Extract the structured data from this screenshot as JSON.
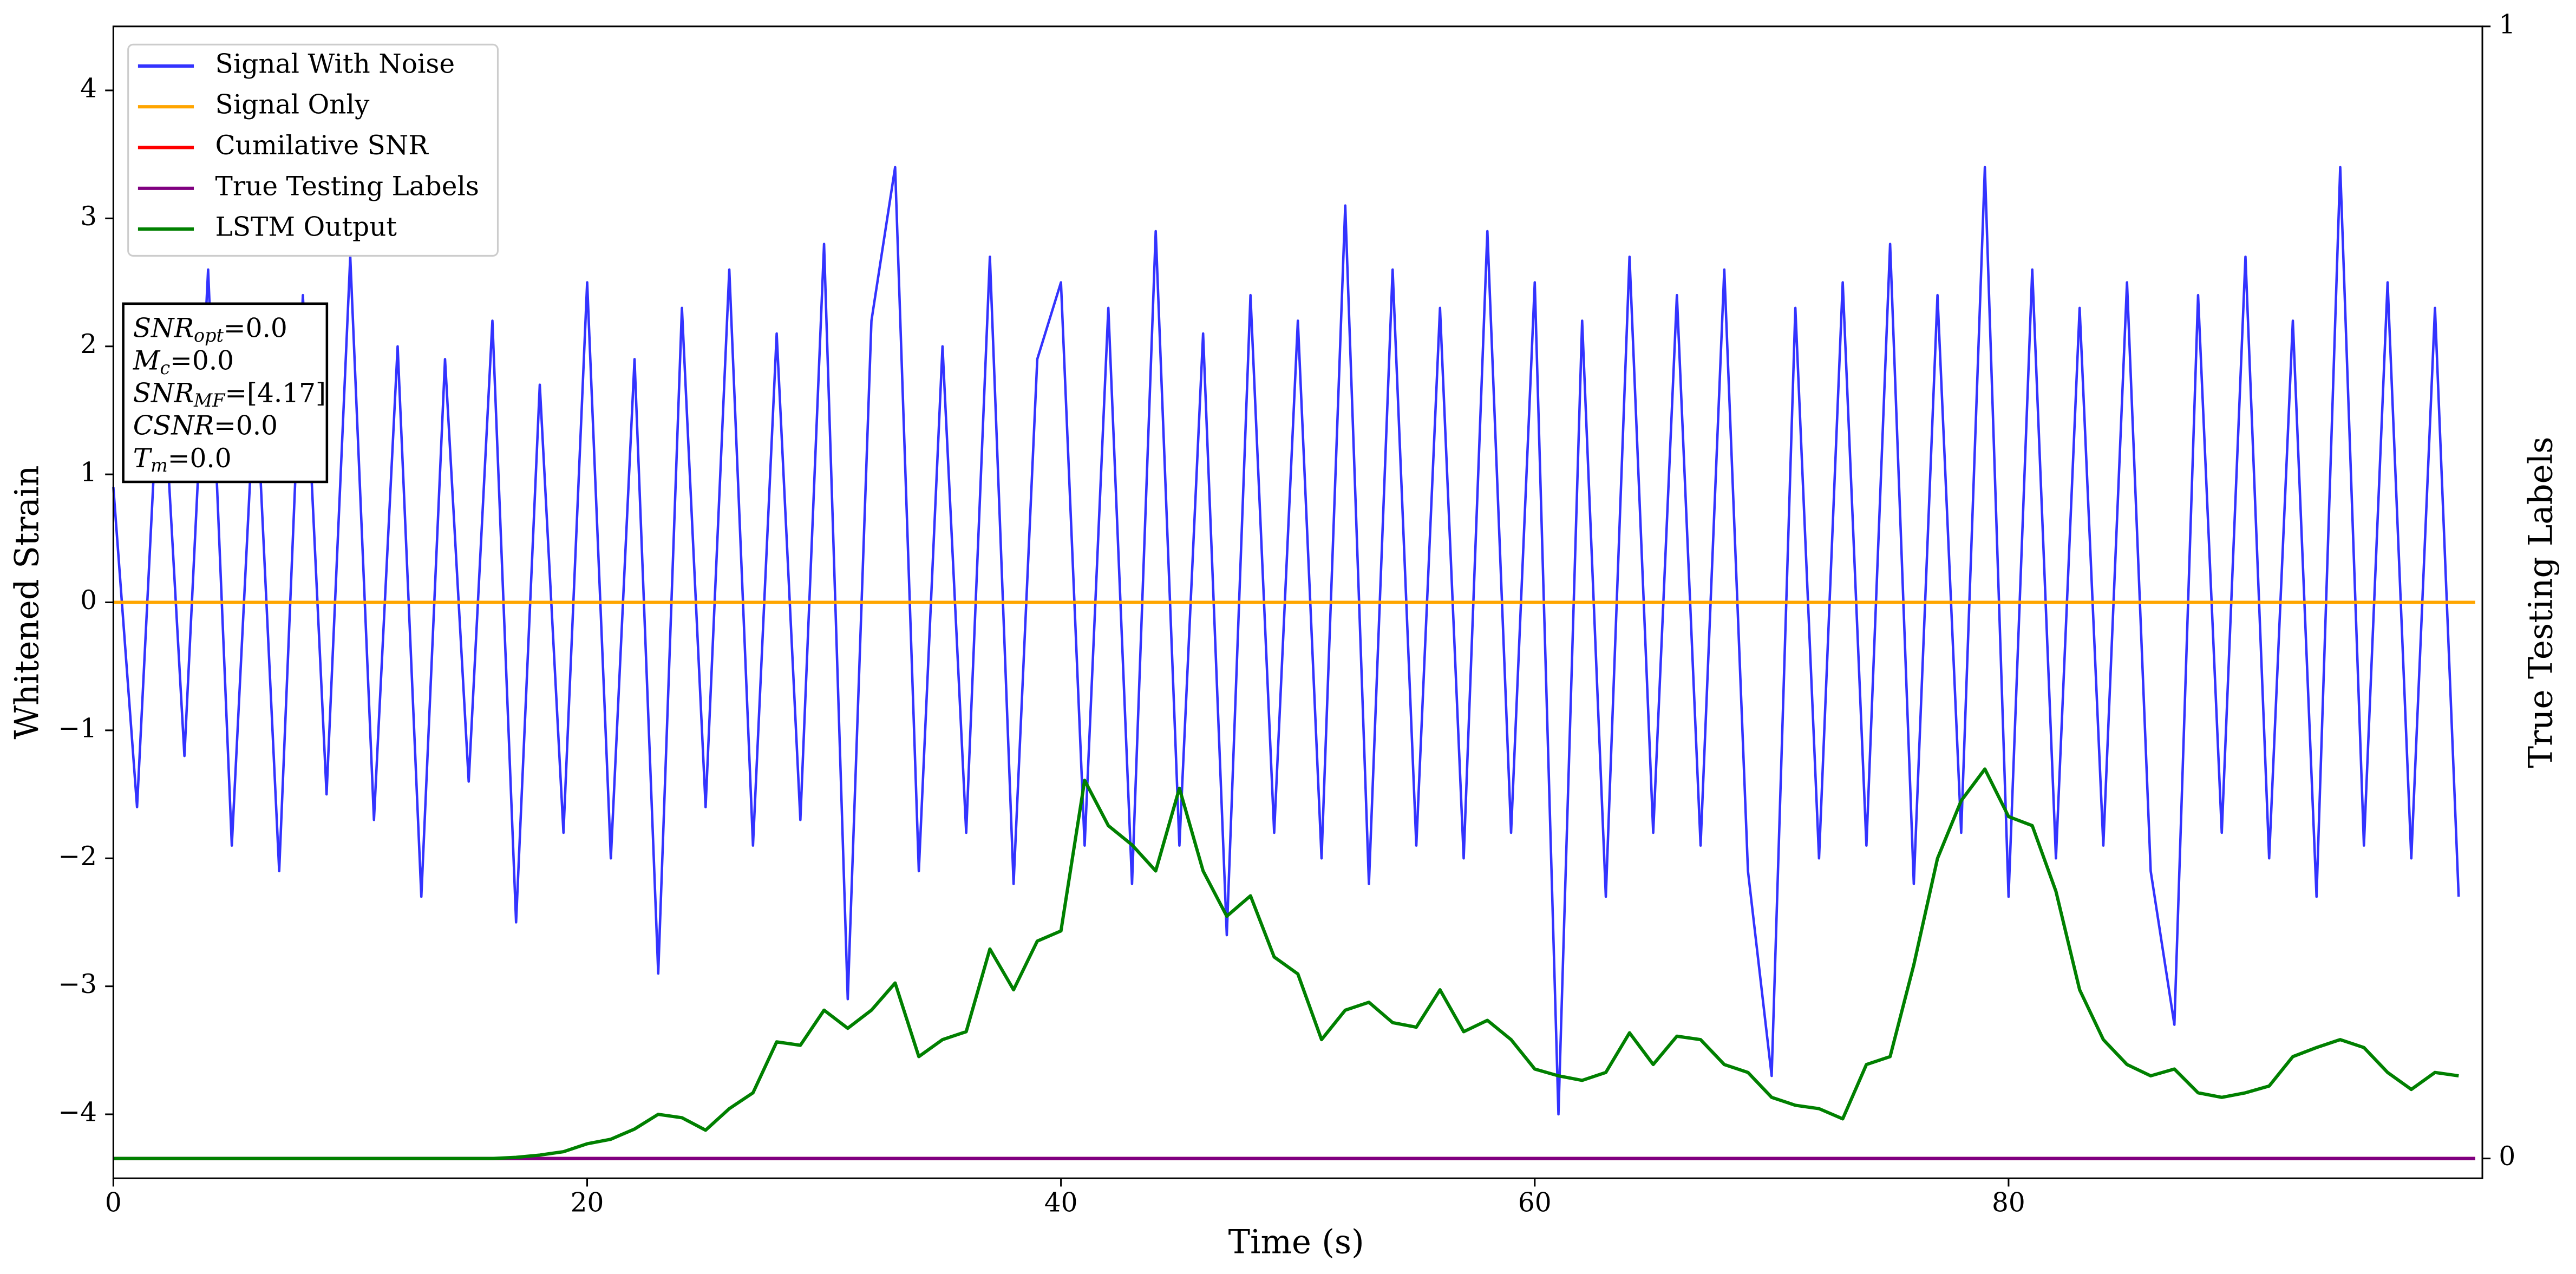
{
  "chart_data": {
    "type": "line",
    "xlabel": "Time (s)",
    "ylabel": "Whitened Strain",
    "y2label": "True Testing Labels",
    "xlim": [
      0,
      100
    ],
    "xticks": [
      0,
      20,
      40,
      60,
      80
    ],
    "ylim": [
      -4.5,
      4.5
    ],
    "yticks": [
      {
        "value": -4,
        "label": "−4"
      },
      {
        "value": -3,
        "label": "−3"
      },
      {
        "value": -2,
        "label": "−2"
      },
      {
        "value": -1,
        "label": "−1"
      },
      0,
      1,
      2,
      3,
      4
    ],
    "y2lim": [
      -0.0175,
      1
    ],
    "y2ticks": [
      0,
      1
    ],
    "legend": "upper left",
    "annotation": [
      {
        "symbol": "SNR",
        "sub": "opt",
        "value": "=0.0"
      },
      {
        "symbol": "M",
        "sub": "c",
        "value": "=0.0"
      },
      {
        "symbol": "SNR",
        "sub": "MF",
        "value": "=[4.17]"
      },
      {
        "symbol": "CSNR",
        "value": "=0.0"
      },
      {
        "symbol": "T",
        "sub": "m",
        "value": "=0.0"
      }
    ],
    "x": [
      0,
      1,
      2,
      3,
      4,
      5,
      6,
      7,
      8,
      9,
      10,
      11,
      12,
      13,
      14,
      15,
      16,
      17,
      18,
      19,
      20,
      21,
      22,
      23,
      24,
      25,
      26,
      27,
      28,
      29,
      30,
      31,
      32,
      33,
      34,
      35,
      36,
      37,
      38,
      39,
      40,
      41,
      42,
      43,
      44,
      45,
      46,
      47,
      48,
      49,
      50,
      51,
      52,
      53,
      54,
      55,
      56,
      57,
      58,
      59,
      60,
      61,
      62,
      63,
      64,
      65,
      66,
      67,
      68,
      69,
      70,
      71,
      72,
      73,
      74,
      75,
      76,
      77,
      78,
      79,
      80,
      81,
      82,
      83,
      84,
      85,
      86,
      87,
      88,
      89,
      90,
      91,
      92,
      93,
      94,
      95,
      96,
      97,
      98,
      99
    ],
    "series": [
      {
        "name": "Signal With Noise",
        "color": "#3333ff",
        "values": [
          0.9,
          -1.6,
          2.1,
          -1.2,
          2.6,
          -1.9,
          1.8,
          -2.1,
          2.4,
          -1.5,
          2.7,
          -1.7,
          2.0,
          -2.3,
          1.9,
          -1.4,
          2.2,
          -2.5,
          1.7,
          -1.8,
          2.5,
          -2.0,
          1.9,
          -2.9,
          2.3,
          -1.6,
          2.6,
          -1.9,
          2.1,
          -1.7,
          2.8,
          -3.1,
          2.2,
          3.4,
          -2.1,
          2.0,
          -1.8,
          2.7,
          -2.2,
          1.9,
          2.5,
          -1.9,
          2.3,
          -2.2,
          2.9,
          -1.9,
          2.1,
          -2.6,
          2.4,
          -1.8,
          2.2,
          -2.0,
          3.1,
          -2.2,
          2.6,
          -1.9,
          2.3,
          -2.0,
          2.9,
          -1.8,
          2.5,
          -4.0,
          2.2,
          -2.3,
          2.7,
          -1.8,
          2.4,
          -1.9,
          2.6,
          -2.1,
          -3.7,
          2.3,
          -2.0,
          2.5,
          -1.9,
          2.8,
          -2.2,
          2.4,
          -1.8,
          3.4,
          -2.3,
          2.6,
          -2.0,
          2.3,
          -1.9,
          2.5,
          -2.1,
          -3.3,
          2.4,
          -1.8,
          2.7,
          -2.0,
          2.2,
          -2.3,
          3.4,
          -1.9,
          2.5,
          -2.0,
          2.3,
          -2.3
        ]
      },
      {
        "name": "Signal Only",
        "color": "#ffa500",
        "x": [
          0,
          99.7
        ],
        "values": [
          0,
          0
        ]
      },
      {
        "name": "Cumilative SNR",
        "color": "#ff0000",
        "axis": "y2",
        "x": [
          0,
          99.7
        ],
        "values": [
          0,
          0
        ]
      },
      {
        "name": "True Testing Labels",
        "color": "#800080",
        "axis": "y2",
        "x": [
          0,
          99.7
        ],
        "values": [
          0,
          0
        ]
      },
      {
        "name": "LSTM Output",
        "color": "#008000",
        "axis": "y2",
        "values": [
          0,
          0,
          0,
          0,
          0,
          0,
          0,
          0,
          0,
          0,
          0,
          0,
          0,
          0,
          0,
          0,
          0,
          0.001,
          0.003,
          0.006,
          0.013,
          0.017,
          0.026,
          0.039,
          0.036,
          0.025,
          0.044,
          0.058,
          0.103,
          0.1,
          0.131,
          0.115,
          0.131,
          0.155,
          0.09,
          0.105,
          0.112,
          0.185,
          0.149,
          0.192,
          0.201,
          0.334,
          0.294,
          0.277,
          0.254,
          0.327,
          0.254,
          0.214,
          0.232,
          0.178,
          0.163,
          0.105,
          0.131,
          0.138,
          0.12,
          0.116,
          0.149,
          0.112,
          0.122,
          0.105,
          0.079,
          0.073,
          0.069,
          0.076,
          0.111,
          0.083,
          0.108,
          0.105,
          0.083,
          0.076,
          0.054,
          0.047,
          0.044,
          0.035,
          0.083,
          0.09,
          0.171,
          0.265,
          0.316,
          0.344,
          0.302,
          0.294,
          0.236,
          0.149,
          0.105,
          0.083,
          0.073,
          0.079,
          0.058,
          0.054,
          0.058,
          0.064,
          0.09,
          0.098,
          0.105,
          0.098,
          0.076,
          0.061,
          0.076,
          0.073
        ]
      }
    ]
  }
}
